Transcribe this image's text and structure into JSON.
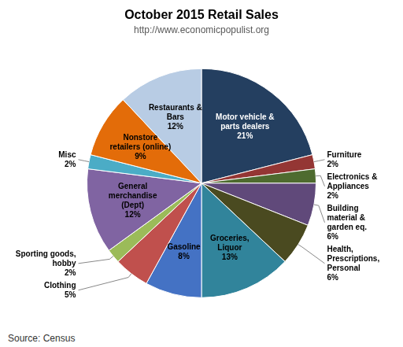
{
  "chart_data": {
    "type": "pie",
    "title": "October 2015 Retail Sales",
    "subtitle": "http://www.economicpopulist.org",
    "source": "Source: Census",
    "categories": [
      "Motor vehicle &\nparts dealers",
      "Furniture",
      "Electronics &\nAppliances",
      "Building\nmaterial &\ngarden eq.",
      "Health,\nPrescriptions,\nPersonal",
      "Groceries,\nLiquor",
      "Gasoline",
      "Clothing",
      "Sporting goods,\nhobby",
      "General\nmerchandise\n(Dept)",
      "Misc",
      "Nonstore\nretailers (online)",
      "Restaurants &\nBars"
    ],
    "values": [
      21,
      2,
      2,
      6,
      6,
      13,
      8,
      5,
      2,
      12,
      2,
      9,
      12
    ],
    "value_labels": [
      "21%",
      "2%",
      "2%",
      "6%",
      "6%",
      "13%",
      "8%",
      "5%",
      "2%",
      "12%",
      "2%",
      "9%",
      "12%"
    ],
    "colors": [
      "#243f60",
      "#943634",
      "#4e6b2f",
      "#60497a",
      "#4a4a20",
      "#31849b",
      "#4472c4",
      "#c0504d",
      "#9bbb59",
      "#8064a2",
      "#4bacc6",
      "#e36c09",
      "#b8cce4"
    ],
    "data_labels": true,
    "legend": false
  }
}
